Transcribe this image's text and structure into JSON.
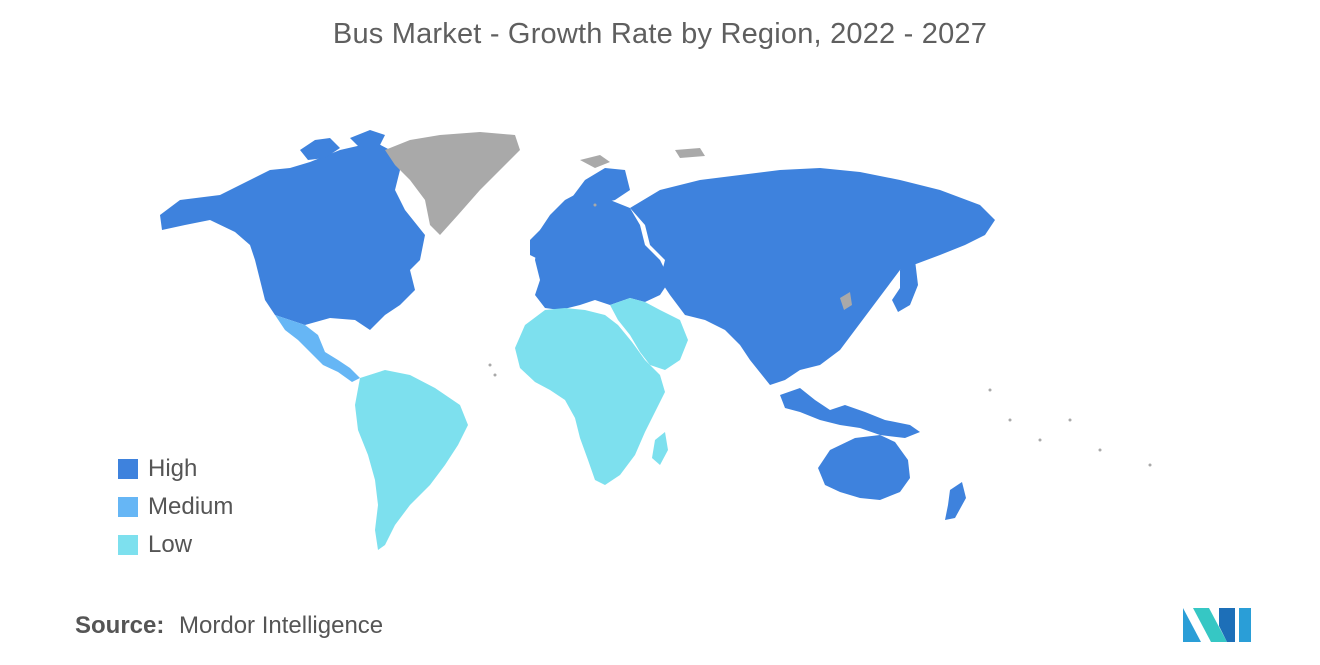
{
  "title": "Bus Market - Growth Rate by Region, 2022 - 2027",
  "legend": [
    {
      "label": "High",
      "color": "#3E82DD"
    },
    {
      "label": "Medium",
      "color": "#66B6F5"
    },
    {
      "label": "Low",
      "color": "#7DE0EE"
    }
  ],
  "no_data_color": "#A9A9A9",
  "regions": [
    {
      "name": "North America",
      "level": "High"
    },
    {
      "name": "Europe",
      "level": "High"
    },
    {
      "name": "Russia & North Asia",
      "level": "High"
    },
    {
      "name": "Asia-Pacific",
      "level": "High"
    },
    {
      "name": "Australia & New Zealand",
      "level": "High"
    },
    {
      "name": "Mexico & Central America",
      "level": "Medium"
    },
    {
      "name": "South America",
      "level": "Low"
    },
    {
      "name": "Africa",
      "level": "Low"
    },
    {
      "name": "Middle East",
      "level": "Low"
    },
    {
      "name": "Greenland",
      "level": "none"
    }
  ],
  "source": {
    "label": "Source:",
    "text": "Mordor Intelligence"
  },
  "logo": {
    "name": "mordor-intelligence-logo",
    "colors": [
      "#2A9ED7",
      "#36C7C4",
      "#1D6FB8"
    ]
  }
}
